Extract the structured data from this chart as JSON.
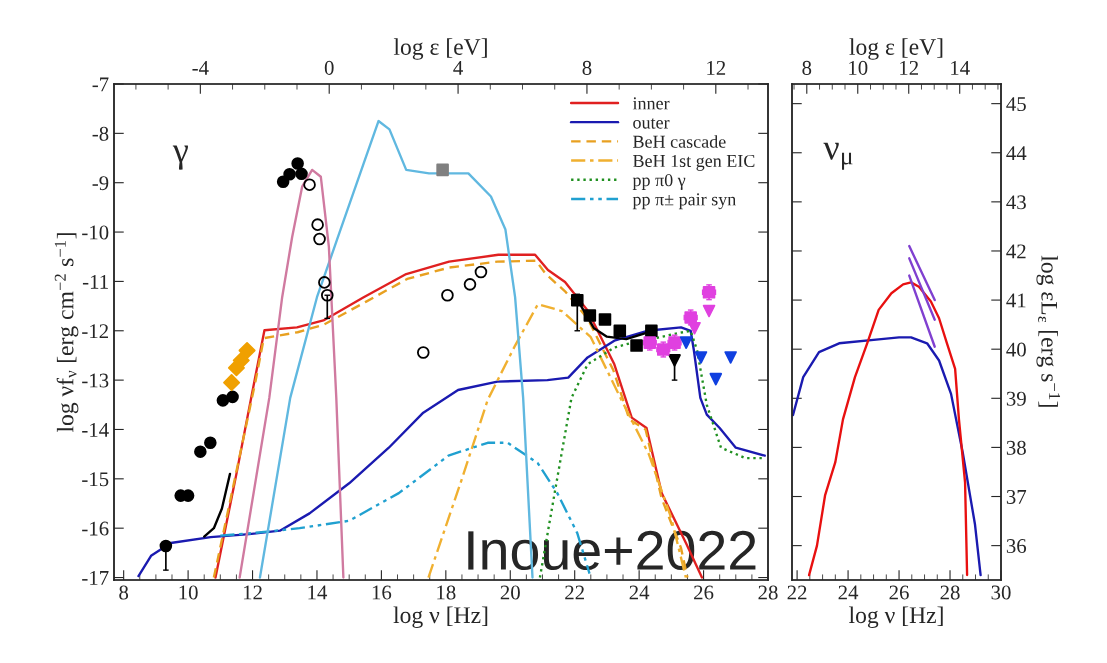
{
  "chart_data": [
    {
      "type": "line",
      "xlabel": "log ν [Hz]",
      "ylabel": "log νf$_{ν}$ [erg cm$^{−2}$ s$^{−1}$]",
      "x2label": "log ε [eV]",
      "xlim": [
        7.7,
        28
      ],
      "xticks": [
        8,
        10,
        12,
        14,
        16,
        18,
        20,
        22,
        24,
        26,
        28
      ],
      "ylim": [
        -17.05,
        -7
      ],
      "yticks": [
        -17,
        -16,
        -15,
        -14,
        -13,
        -12,
        -11,
        -10,
        -9,
        -8,
        -7
      ],
      "x2lim": [
        -6.68,
        13.62
      ],
      "x2ticks": [
        -4,
        0,
        4,
        8,
        12
      ],
      "legend": "top right",
      "annotations": [
        "γ",
        "Inoue+2022"
      ],
      "series": [
        {
          "type": "line",
          "name": "inner",
          "color": "#e02020",
          "line_style": "solid",
          "x": [
            10.85,
            11.5,
            12.08,
            12.37,
            13.38,
            14.2,
            15.45,
            16.77,
            18.1,
            19.63,
            20.77,
            21.17,
            21.7,
            22.4,
            23.23,
            23.77,
            24.23,
            24.7,
            25.46,
            25.95
          ],
          "values": [
            -17,
            -14.9,
            -12.95,
            -11.99,
            -11.93,
            -11.79,
            -11.32,
            -10.85,
            -10.6,
            -10.46,
            -10.46,
            -10.77,
            -11.01,
            -11.59,
            -12.68,
            -13.76,
            -13.97,
            -15.29,
            -16.31,
            -17
          ]
        },
        {
          "type": "line",
          "name": "outer",
          "color": "#1a1ab0",
          "line_style": "solid",
          "x": [
            8.46,
            8.85,
            9.46,
            10.7,
            11.9,
            12.85,
            13.77,
            15.0,
            16.23,
            17.3,
            18.38,
            19.6,
            21.15,
            21.8,
            22.4,
            23.23,
            24.25,
            25.3,
            25.6,
            25.7,
            25.9,
            26.1,
            26.5,
            27.0,
            27.9
          ],
          "values": [
            -16.97,
            -16.56,
            -16.3,
            -16.18,
            -16.12,
            -16.05,
            -15.7,
            -15.09,
            -14.37,
            -13.66,
            -13.2,
            -13.03,
            -13.0,
            -12.95,
            -12.54,
            -12.2,
            -12.0,
            -11.93,
            -12.0,
            -12.4,
            -13.36,
            -13.7,
            -13.97,
            -14.37,
            -14.53
          ]
        },
        {
          "type": "line",
          "name": "BeH cascade",
          "color": "#e8a020",
          "line_style": "dashed",
          "x": [
            10.8,
            12.1,
            12.35,
            13.4,
            14.2,
            15.5,
            16.8,
            18.1,
            19.6,
            20.8,
            21.1,
            21.7,
            22.4,
            23.2,
            23.7,
            24.2,
            24.7,
            25.3,
            25.5
          ],
          "values": [
            -17,
            -13,
            -12.15,
            -12.03,
            -11.88,
            -11.42,
            -10.95,
            -10.72,
            -10.6,
            -10.58,
            -10.85,
            -11.2,
            -11.75,
            -12.8,
            -13.8,
            -14.0,
            -15.4,
            -16.4,
            -17
          ]
        },
        {
          "type": "line",
          "name": "BeH 1st gen EIC",
          "color": "#f0b030",
          "line_style": "dashdot",
          "x": [
            17.46,
            18.5,
            19.3,
            20.15,
            20.86,
            21.6,
            22.5,
            23.45,
            24.3,
            25.0,
            25.45
          ],
          "values": [
            -17,
            -15,
            -13.4,
            -12.3,
            -11.46,
            -11.6,
            -12.13,
            -13.4,
            -14.5,
            -15.8,
            -17
          ]
        },
        {
          "type": "line",
          "name": "pp π0 γ",
          "color": "#209020",
          "line_style": "dotted",
          "x": [
            20.92,
            21.46,
            21.9,
            22.4,
            23.23,
            23.85,
            24.5,
            25.2,
            25.6,
            25.8,
            26.1,
            26.54,
            27.3,
            27.9
          ],
          "values": [
            -17,
            -14.98,
            -13.36,
            -12.68,
            -12.34,
            -12.23,
            -12.15,
            -12.05,
            -12.0,
            -12.4,
            -13.5,
            -14.37,
            -14.58,
            -14.58
          ]
        },
        {
          "type": "line",
          "name": "pp π± pair syn",
          "color": "#20a0d0",
          "line_style": "dashdotdot",
          "x": [
            11.0,
            12.0,
            13.46,
            15.0,
            16.54,
            18.08,
            19.3,
            19.92,
            20.85,
            21.46,
            22.08,
            22.46
          ],
          "values": [
            -16.15,
            -16.1,
            -16.0,
            -15.85,
            -15.29,
            -14.53,
            -14.27,
            -14.27,
            -14.68,
            -15.29,
            -16.1,
            -16.92
          ]
        },
        {
          "type": "line",
          "color": "#000000",
          "line_style": "solid",
          "x": [
            10.5,
            10.8,
            11.05,
            11.3
          ],
          "values": [
            -16.17,
            -16.0,
            -15.6,
            -14.9
          ]
        },
        {
          "type": "line",
          "color": "#000000",
          "line_style": "solid",
          "x": [
            22.2,
            22.6,
            23.0,
            23.6,
            24.2
          ],
          "values": [
            -11.5,
            -11.95,
            -12.12,
            -12.17,
            -12.05
          ]
        },
        {
          "type": "line",
          "color": "#60b8e0",
          "line_style": "solid",
          "x": [
            12.23,
            13.17,
            14.0,
            14.62,
            15.45,
            15.91,
            16.25,
            16.77,
            17.48,
            18.7,
            19.4,
            19.85,
            20.15,
            20.4,
            20.69
          ],
          "values": [
            -17,
            -13.36,
            -11.32,
            -10.16,
            -8.61,
            -7.75,
            -7.92,
            -8.74,
            -8.81,
            -8.81,
            -9.28,
            -9.95,
            -11.32,
            -13.36,
            -17
          ]
        },
        {
          "type": "line",
          "color": "#d07aa0",
          "line_style": "solid",
          "x": [
            11.6,
            12.52,
            12.92,
            13.23,
            13.54,
            13.85,
            14.12,
            14.37,
            14.6,
            14.82
          ],
          "values": [
            -17,
            -13.36,
            -11.32,
            -10.1,
            -9.08,
            -8.74,
            -8.88,
            -10.3,
            -13.36,
            -17
          ]
        },
        {
          "type": "scatter",
          "color": "#000000",
          "marker": "circle",
          "x": [
            9.31,
            9.77,
            10.0,
            10.38,
            10.69,
            11.08,
            11.38,
            12.95,
            13.15,
            13.4,
            13.52
          ],
          "values": [
            -16.36,
            -15.34,
            -15.34,
            -14.45,
            -14.27,
            -13.41,
            -13.34,
            -8.98,
            -8.83,
            -8.61,
            -8.82
          ],
          "errors": [
            [
              -16.85,
              -16.36
            ],
            null,
            null,
            null,
            null,
            null,
            null,
            null,
            null,
            null,
            null
          ]
        },
        {
          "type": "scatter",
          "color": "#000000",
          "marker": "open circle",
          "x": [
            13.77,
            14.02,
            14.08,
            14.23,
            14.32,
            17.3,
            18.05,
            18.75,
            19.09
          ],
          "values": [
            -9.04,
            -9.85,
            -10.14,
            -11.02,
            -11.28,
            -12.44,
            -11.28,
            -11.06,
            -10.81
          ],
          "errors": [
            null,
            null,
            null,
            null,
            [
              -11.75,
              -11.28
            ],
            null,
            null,
            null,
            null
          ]
        },
        {
          "type": "scatter",
          "color": "#808080",
          "marker": "square",
          "x": [
            17.9
          ],
          "values": [
            -8.74
          ]
        },
        {
          "type": "scatter",
          "color": "#f0a000",
          "marker": "diamond",
          "x": [
            11.35,
            11.5,
            11.65,
            11.83
          ],
          "values": [
            -13.05,
            -12.75,
            -12.6,
            -12.4
          ]
        },
        {
          "type": "scatter",
          "color": "#000000",
          "marker": "square",
          "x": [
            22.08,
            22.47,
            22.94,
            23.4,
            23.92,
            24.38
          ],
          "values": [
            -11.38,
            -11.69,
            -11.77,
            -12.0,
            -12.3,
            -12.0
          ],
          "errors": [
            [
              -12.0,
              -11.26
            ],
            null,
            null,
            null,
            null,
            null
          ]
        },
        {
          "type": "scatter",
          "color": "#000000",
          "marker": "triangle",
          "x": [
            25.1
          ],
          "values": [
            -12.6
          ],
          "errors": [
            [
              -13.0,
              -12.6
            ]
          ]
        },
        {
          "type": "scatter",
          "color": "#e040e0",
          "marker": "square",
          "x": [
            24.33,
            24.75,
            25.1,
            25.6,
            26.17
          ],
          "values": [
            -12.24,
            -12.38,
            -12.24,
            -11.73,
            -11.22
          ],
          "errors": [
            0.15,
            0.15,
            0.15,
            0.15,
            0.15
          ],
          "xerrors": [
            0.2,
            0.2,
            0.2,
            0.2,
            0.2
          ]
        },
        {
          "type": "scatter",
          "color": "#e040e0",
          "marker": "triangle",
          "x": [
            25.72,
            26.17
          ],
          "values": [
            -11.95,
            -11.6
          ]
        },
        {
          "type": "scatter",
          "color": "#1040e0",
          "marker": "triangle",
          "x": [
            25.46,
            25.92,
            26.38,
            26.84
          ],
          "values": [
            -12.24,
            -12.54,
            -12.98,
            -12.54
          ]
        }
      ]
    },
    {
      "type": "line",
      "xlabel": "log ν [Hz]",
      "ylabel": "log εL$_{ε}$ [erg s$^{−1}$]",
      "x2label": "log ε [eV]",
      "xlim": [
        21.8,
        30
      ],
      "xticks": [
        22,
        24,
        26,
        28,
        30
      ],
      "ylim": [
        35.3,
        45.4
      ],
      "yticks": [
        36,
        37,
        38,
        39,
        40,
        41,
        42,
        43,
        44,
        45
      ],
      "x2lim": [
        7.42,
        15.62
      ],
      "x2ticks": [
        8,
        10,
        12,
        14
      ],
      "annotations": [
        "ν$_{μ}$"
      ],
      "series": [
        {
          "type": "line",
          "color": "#1a1ab0",
          "line_style": "solid",
          "x": [
            21.84,
            22.24,
            22.86,
            23.65,
            25.2,
            26.0,
            26.47,
            27.1,
            27.57,
            28.04,
            28.5,
            28.98,
            29.2
          ],
          "values": [
            38.66,
            39.43,
            39.94,
            40.12,
            40.2,
            40.24,
            40.24,
            40.12,
            39.77,
            39.09,
            37.89,
            36.43,
            35.4
          ]
        },
        {
          "type": "line",
          "color": "#e81010",
          "line_style": "solid",
          "x": [
            22.47,
            22.78,
            23.1,
            23.5,
            23.8,
            24.27,
            24.75,
            25.2,
            25.7,
            26.16,
            26.47,
            26.78,
            27.25,
            27.57,
            27.88,
            28.2,
            28.35,
            28.59,
            28.67
          ],
          "values": [
            35.4,
            36.0,
            37.03,
            37.7,
            38.57,
            39.43,
            40.12,
            40.8,
            41.14,
            41.32,
            41.36,
            41.27,
            40.97,
            40.63,
            40.12,
            39.6,
            38.57,
            37.29,
            35.4
          ]
        },
        {
          "type": "line",
          "color": "#8040d0",
          "line_style": "solid",
          "x": [
            26.4,
            27.4
          ],
          "values": [
            42.1,
            41.0
          ]
        },
        {
          "type": "line",
          "color": "#8040d0",
          "line_style": "solid",
          "x": [
            26.4,
            27.4
          ],
          "values": [
            41.85,
            40.6
          ]
        },
        {
          "type": "line",
          "color": "#8040d0",
          "line_style": "solid",
          "x": [
            26.4,
            27.4
          ],
          "values": [
            41.5,
            40.05
          ]
        }
      ]
    }
  ]
}
